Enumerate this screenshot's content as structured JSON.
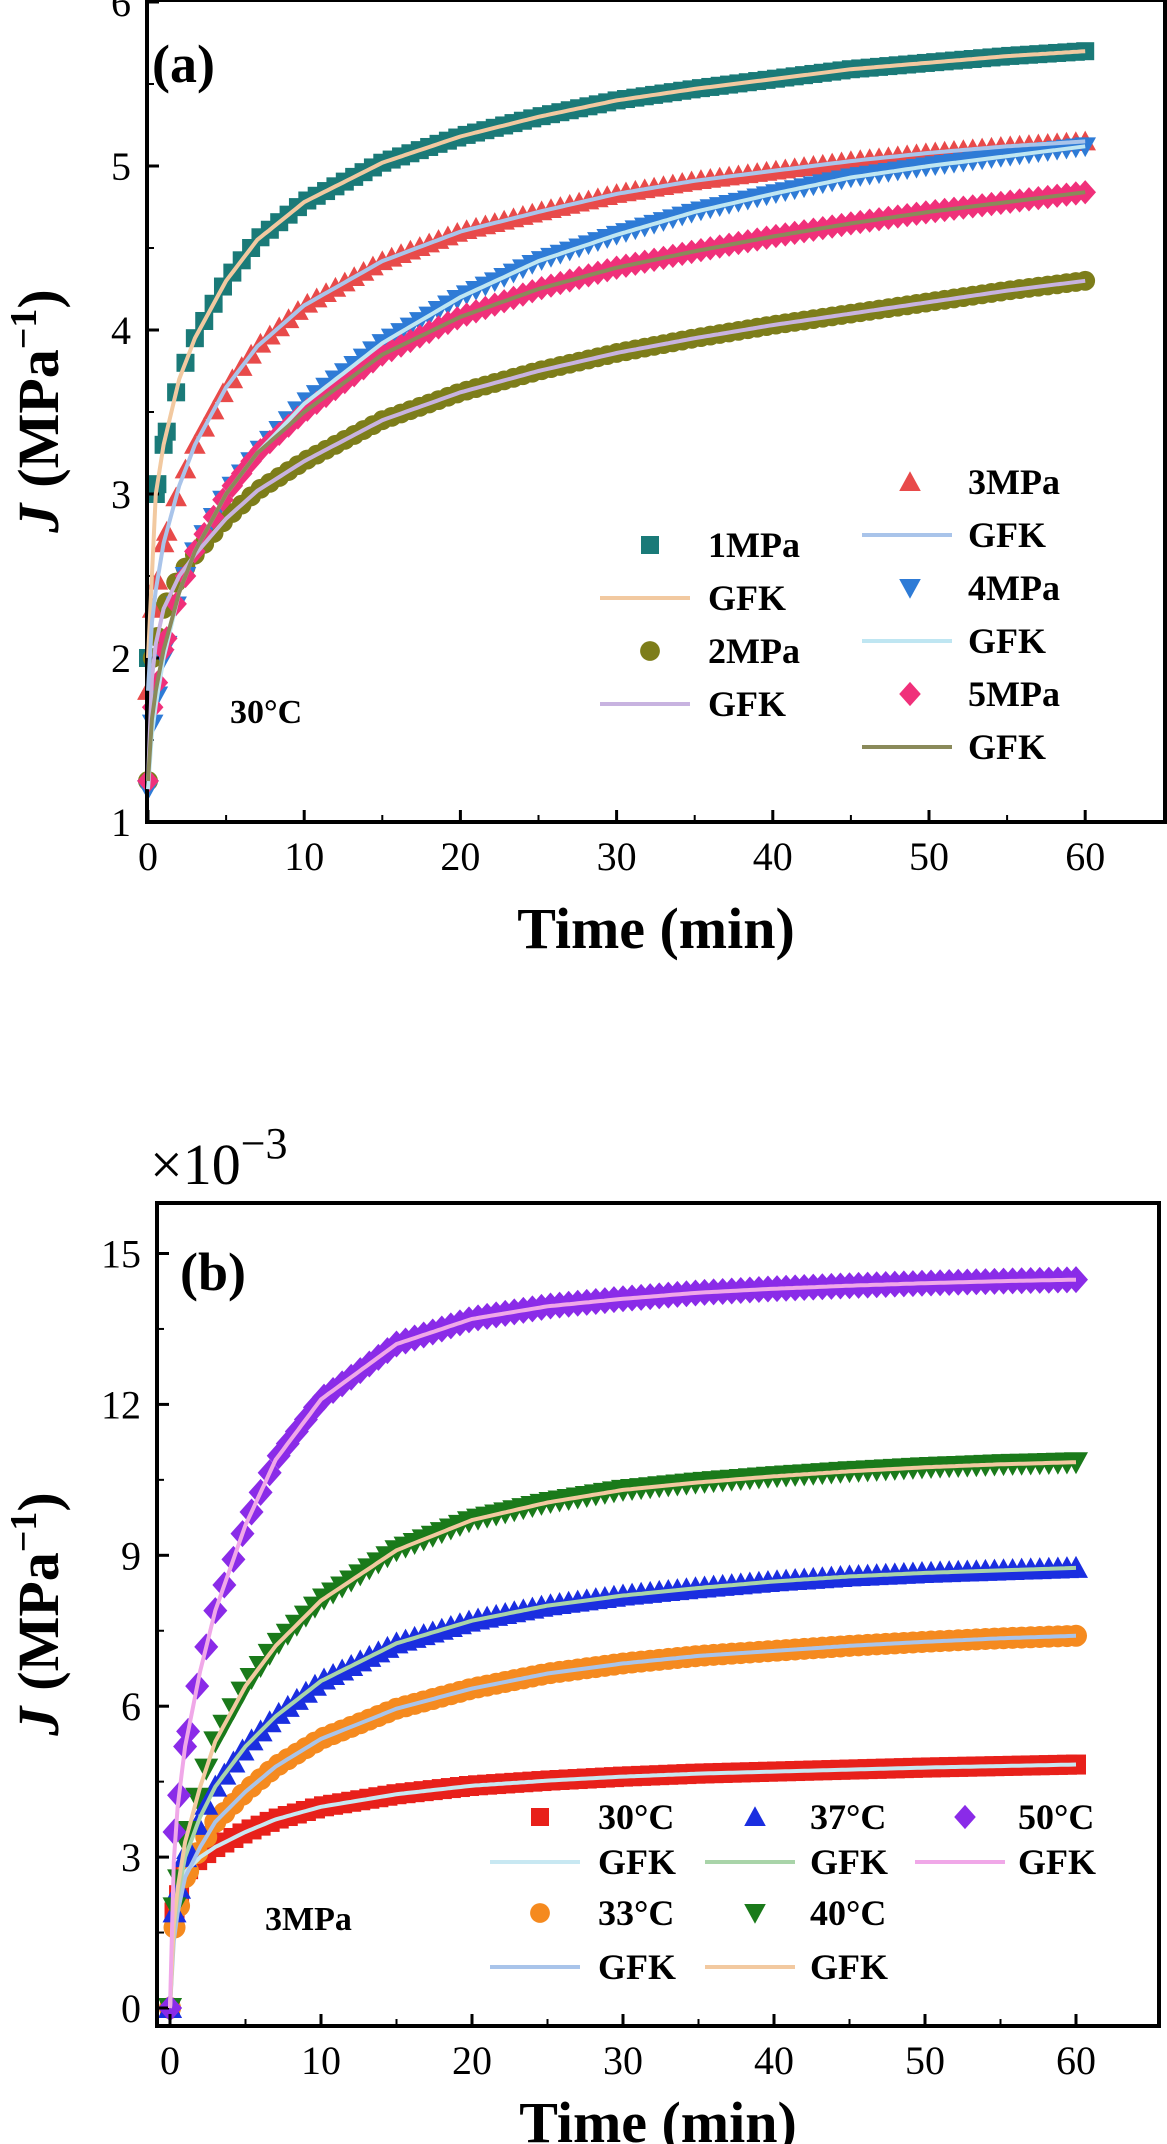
{
  "chart_data": [
    {
      "type": "scatter",
      "panel_label": "(a)",
      "xlabel": "Time (min)",
      "ylabel_main": "J",
      "ylabel_unit": "(MPa",
      "ylabel_exp": "−1",
      "ylabel_close": ")",
      "xlim": [
        -1,
        65
      ],
      "ylim": [
        1,
        6
      ],
      "xticks": [
        "0",
        "10",
        "20",
        "30",
        "40",
        "50",
        "60"
      ],
      "yticks": [
        "1",
        "2",
        "3",
        "4",
        "5",
        "6"
      ],
      "annotation": "30°C",
      "legend_position": "bottom-right",
      "fit_label": "GFK",
      "series": [
        {
          "name": "1MPa",
          "marker": "square",
          "color": "#1a7a78",
          "fit_color": "#f2c9a0",
          "fit": "GFK",
          "points": [
            [
              0,
              2.0
            ],
            [
              0.5,
              3.0
            ],
            [
              1,
              3.3
            ],
            [
              2,
              3.7
            ],
            [
              3,
              3.95
            ],
            [
              5,
              4.3
            ],
            [
              7,
              4.55
            ],
            [
              10,
              4.78
            ],
            [
              15,
              5.02
            ],
            [
              20,
              5.18
            ],
            [
              25,
              5.3
            ],
            [
              30,
              5.4
            ],
            [
              35,
              5.47
            ],
            [
              40,
              5.53
            ],
            [
              45,
              5.59
            ],
            [
              50,
              5.63
            ],
            [
              55,
              5.67
            ],
            [
              60,
              5.7
            ]
          ]
        },
        {
          "name": "2MPa",
          "marker": "circle",
          "color": "#7d7d1a",
          "fit_color": "#c8b3e0",
          "fit": "GFK",
          "points": [
            [
              0,
              1.25
            ],
            [
              0.3,
              2.0
            ],
            [
              1,
              2.3
            ],
            [
              2,
              2.5
            ],
            [
              3,
              2.63
            ],
            [
              5,
              2.85
            ],
            [
              7,
              3.02
            ],
            [
              10,
              3.2
            ],
            [
              15,
              3.45
            ],
            [
              20,
              3.62
            ],
            [
              25,
              3.75
            ],
            [
              30,
              3.86
            ],
            [
              35,
              3.95
            ],
            [
              40,
              4.03
            ],
            [
              45,
              4.1
            ],
            [
              50,
              4.17
            ],
            [
              55,
              4.24
            ],
            [
              60,
              4.3
            ]
          ]
        },
        {
          "name": "3MPa",
          "marker": "triangle-up",
          "color": "#e84a4a",
          "fit_color": "#a9c4ea",
          "fit": "GFK",
          "points": [
            [
              0,
              1.8
            ],
            [
              0.3,
              2.3
            ],
            [
              1,
              2.7
            ],
            [
              2,
              3.05
            ],
            [
              3,
              3.3
            ],
            [
              5,
              3.65
            ],
            [
              7,
              3.9
            ],
            [
              10,
              4.15
            ],
            [
              15,
              4.42
            ],
            [
              20,
              4.6
            ],
            [
              25,
              4.72
            ],
            [
              30,
              4.83
            ],
            [
              35,
              4.91
            ],
            [
              40,
              4.97
            ],
            [
              45,
              5.03
            ],
            [
              50,
              5.08
            ],
            [
              55,
              5.12
            ],
            [
              60,
              5.15
            ]
          ]
        },
        {
          "name": "4MPa",
          "marker": "triangle-down",
          "color": "#2e7bd6",
          "fit_color": "#bfe6f2",
          "fit": "GFK",
          "points": [
            [
              0,
              1.2
            ],
            [
              0.3,
              1.6
            ],
            [
              1,
              2.0
            ],
            [
              2,
              2.4
            ],
            [
              3,
              2.65
            ],
            [
              5,
              3.0
            ],
            [
              7,
              3.25
            ],
            [
              10,
              3.55
            ],
            [
              15,
              3.92
            ],
            [
              20,
              4.2
            ],
            [
              25,
              4.42
            ],
            [
              30,
              4.58
            ],
            [
              35,
              4.72
            ],
            [
              40,
              4.83
            ],
            [
              45,
              4.93
            ],
            [
              50,
              5.0
            ],
            [
              55,
              5.06
            ],
            [
              60,
              5.12
            ]
          ]
        },
        {
          "name": "5MPa",
          "marker": "diamond",
          "color": "#f0307a",
          "fit_color": "#8a8a5a",
          "fit": "GFK",
          "points": [
            [
              0,
              1.25
            ],
            [
              0.3,
              1.7
            ],
            [
              1,
              2.05
            ],
            [
              2,
              2.4
            ],
            [
              3,
              2.65
            ],
            [
              5,
              3.0
            ],
            [
              7,
              3.25
            ],
            [
              10,
              3.5
            ],
            [
              15,
              3.85
            ],
            [
              20,
              4.08
            ],
            [
              25,
              4.25
            ],
            [
              30,
              4.38
            ],
            [
              35,
              4.48
            ],
            [
              40,
              4.57
            ],
            [
              45,
              4.65
            ],
            [
              50,
              4.72
            ],
            [
              55,
              4.78
            ],
            [
              60,
              4.84
            ]
          ]
        }
      ]
    },
    {
      "type": "scatter",
      "panel_label": "(b)",
      "multiplier": "×10",
      "multiplier_exp": "−3",
      "xlabel": "Time (min)",
      "ylabel_main": "J",
      "ylabel_unit": "(MPa",
      "ylabel_exp": "−1",
      "ylabel_close": ")",
      "xlim": [
        -1,
        65
      ],
      "ylim": [
        0,
        16
      ],
      "xticks": [
        "0",
        "10",
        "20",
        "30",
        "40",
        "50",
        "60"
      ],
      "yticks": [
        "0",
        "3",
        "6",
        "9",
        "12",
        "15"
      ],
      "annotation": "3MPa",
      "legend_position": "bottom-right",
      "fit_label": "GFK",
      "series": [
        {
          "name": "30°C",
          "marker": "square",
          "color": "#e8201a",
          "fit_color": "#c8e8f2",
          "fit": "GFK",
          "points": [
            [
              0,
              0
            ],
            [
              0.3,
              1.9
            ],
            [
              1,
              2.7
            ],
            [
              2,
              3.0
            ],
            [
              3,
              3.2
            ],
            [
              5,
              3.5
            ],
            [
              7,
              3.75
            ],
            [
              10,
              4.0
            ],
            [
              15,
              4.25
            ],
            [
              20,
              4.42
            ],
            [
              25,
              4.52
            ],
            [
              30,
              4.6
            ],
            [
              35,
              4.66
            ],
            [
              40,
              4.7
            ],
            [
              45,
              4.74
            ],
            [
              50,
              4.78
            ],
            [
              55,
              4.81
            ],
            [
              60,
              4.84
            ]
          ]
        },
        {
          "name": "33°C",
          "marker": "circle",
          "color": "#f58a1f",
          "fit_color": "#a9c4ea",
          "fit": "GFK",
          "points": [
            [
              0,
              0
            ],
            [
              0.3,
              1.6
            ],
            [
              1,
              2.6
            ],
            [
              2,
              3.2
            ],
            [
              3,
              3.7
            ],
            [
              5,
              4.3
            ],
            [
              7,
              4.8
            ],
            [
              10,
              5.35
            ],
            [
              15,
              5.95
            ],
            [
              20,
              6.35
            ],
            [
              25,
              6.65
            ],
            [
              30,
              6.85
            ],
            [
              35,
              7.0
            ],
            [
              40,
              7.1
            ],
            [
              45,
              7.2
            ],
            [
              50,
              7.28
            ],
            [
              55,
              7.35
            ],
            [
              60,
              7.4
            ]
          ]
        },
        {
          "name": "37°C",
          "marker": "triangle-up",
          "color": "#1a2ee0",
          "fit_color": "#a9d4a9",
          "fit": "GFK",
          "points": [
            [
              0,
              0
            ],
            [
              0.3,
              1.9
            ],
            [
              1,
              3.0
            ],
            [
              2,
              3.8
            ],
            [
              3,
              4.4
            ],
            [
              5,
              5.2
            ],
            [
              7,
              5.8
            ],
            [
              10,
              6.5
            ],
            [
              15,
              7.25
            ],
            [
              20,
              7.7
            ],
            [
              25,
              8.0
            ],
            [
              30,
              8.2
            ],
            [
              35,
              8.35
            ],
            [
              40,
              8.48
            ],
            [
              45,
              8.58
            ],
            [
              50,
              8.65
            ],
            [
              55,
              8.7
            ],
            [
              60,
              8.75
            ]
          ]
        },
        {
          "name": "40°C",
          "marker": "triangle-down",
          "color": "#1a7a1a",
          "fit_color": "#f2c9a0",
          "fit": "GFK",
          "points": [
            [
              0,
              0
            ],
            [
              0.3,
              2.0
            ],
            [
              1,
              3.3
            ],
            [
              2,
              4.4
            ],
            [
              3,
              5.3
            ],
            [
              5,
              6.4
            ],
            [
              7,
              7.2
            ],
            [
              10,
              8.1
            ],
            [
              15,
              9.1
            ],
            [
              20,
              9.7
            ],
            [
              25,
              10.05
            ],
            [
              30,
              10.3
            ],
            [
              35,
              10.45
            ],
            [
              40,
              10.57
            ],
            [
              45,
              10.67
            ],
            [
              50,
              10.75
            ],
            [
              55,
              10.81
            ],
            [
              60,
              10.85
            ]
          ]
        },
        {
          "name": "50°C",
          "marker": "diamond",
          "color": "#8a2be8",
          "fit_color": "#f0a8e8",
          "fit": "GFK",
          "points": [
            [
              0,
              0
            ],
            [
              0.3,
              3.5
            ],
            [
              1,
              5.2
            ],
            [
              2,
              6.7
            ],
            [
              3,
              7.9
            ],
            [
              5,
              9.6
            ],
            [
              7,
              10.9
            ],
            [
              10,
              12.1
            ],
            [
              15,
              13.2
            ],
            [
              20,
              13.7
            ],
            [
              25,
              13.95
            ],
            [
              30,
              14.1
            ],
            [
              35,
              14.22
            ],
            [
              40,
              14.3
            ],
            [
              45,
              14.36
            ],
            [
              50,
              14.41
            ],
            [
              55,
              14.45
            ],
            [
              60,
              14.48
            ]
          ]
        }
      ]
    }
  ]
}
